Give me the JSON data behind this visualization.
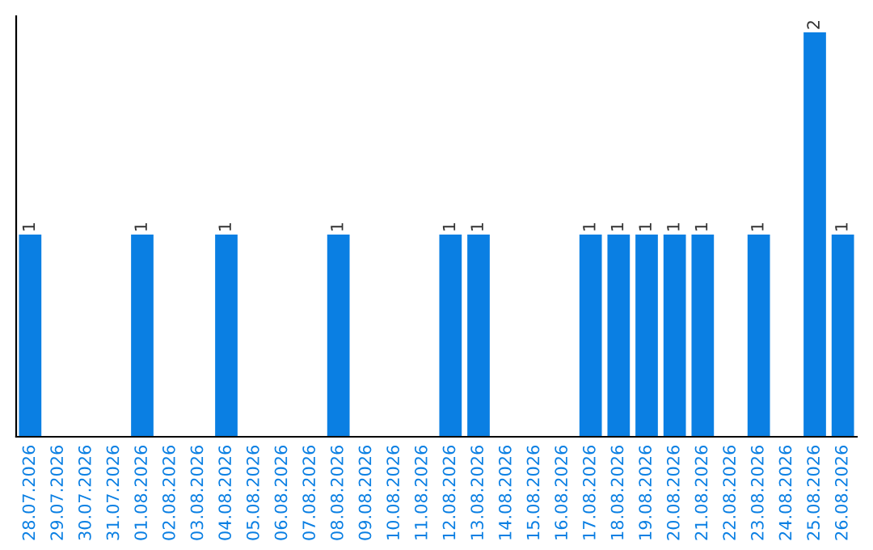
{
  "chart_data": {
    "type": "bar",
    "categories": [
      "28.07.2026",
      "29.07.2026",
      "30.07.2026",
      "31.07.2026",
      "01.08.2026",
      "02.08.2026",
      "03.08.2026",
      "04.08.2026",
      "05.08.2026",
      "06.08.2026",
      "07.08.2026",
      "08.08.2026",
      "09.08.2026",
      "10.08.2026",
      "11.08.2026",
      "12.08.2026",
      "13.08.2026",
      "14.08.2026",
      "15.08.2026",
      "16.08.2026",
      "17.08.2026",
      "18.08.2026",
      "19.08.2026",
      "20.08.2026",
      "21.08.2026",
      "22.08.2026",
      "23.08.2026",
      "24.08.2026",
      "25.08.2026",
      "26.08.2026"
    ],
    "values": [
      1,
      0,
      0,
      0,
      1,
      0,
      0,
      1,
      0,
      0,
      0,
      1,
      0,
      0,
      0,
      1,
      1,
      0,
      0,
      0,
      1,
      1,
      1,
      1,
      1,
      0,
      1,
      0,
      2,
      1
    ],
    "value_labels": [
      "1",
      null,
      null,
      null,
      "1",
      null,
      null,
      "1",
      null,
      null,
      null,
      "1",
      null,
      null,
      null,
      "1",
      "1",
      null,
      null,
      null,
      "1",
      "1",
      "1",
      "1",
      "1",
      null,
      "1",
      null,
      "2",
      "1"
    ],
    "color": "#0a7fe3",
    "ylim": [
      0,
      2.08
    ],
    "tick_labels": "x",
    "grid": false,
    "legend": false
  }
}
